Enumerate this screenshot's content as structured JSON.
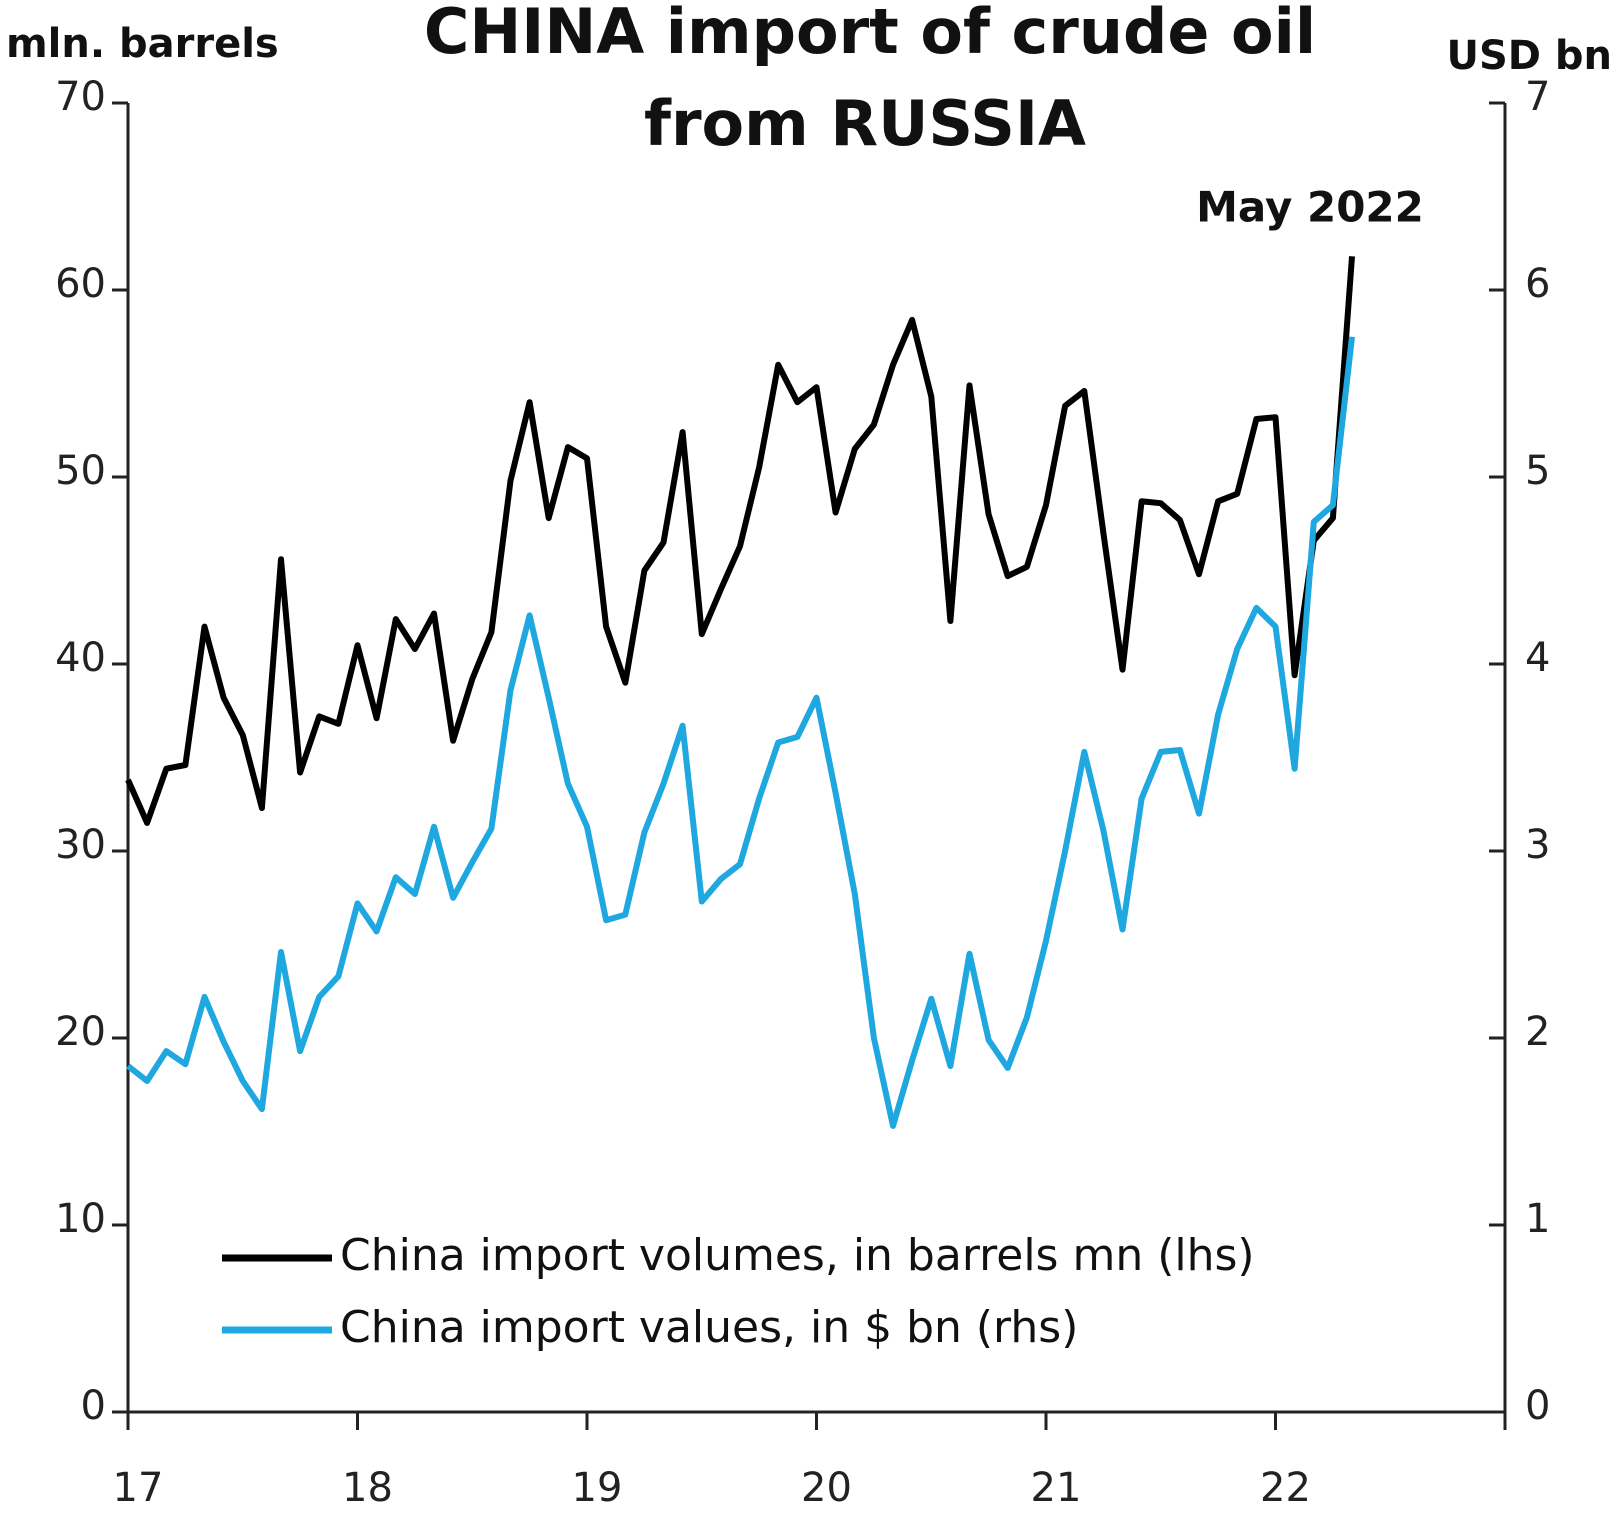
{
  "chart_data": {
    "type": "line",
    "title": [
      "CHINA import of crude oil",
      "from RUSSIA"
    ],
    "ylabel": "mln. barrels",
    "y2label": "USD bn",
    "annotation": "May 2022",
    "xlim": [
      17,
      23
    ],
    "xticks": [
      17,
      18,
      19,
      20,
      21,
      22
    ],
    "ylim": [
      0,
      70
    ],
    "yticks": [
      0,
      10,
      20,
      30,
      40,
      50,
      60,
      70
    ],
    "y2lim": [
      0,
      7
    ],
    "y2ticks": [
      0,
      1,
      2,
      3,
      4,
      5,
      6,
      7
    ],
    "grid": false,
    "legend": "lower left",
    "x": [
      17,
      17.0833,
      17.1667,
      17.25,
      17.3333,
      17.4167,
      17.5,
      17.5833,
      17.6667,
      17.75,
      17.8333,
      17.9167,
      18,
      18.0833,
      18.1667,
      18.25,
      18.3333,
      18.4167,
      18.5,
      18.5833,
      18.6667,
      18.75,
      18.8333,
      18.9167,
      19,
      19.0833,
      19.1667,
      19.25,
      19.3333,
      19.4167,
      19.5,
      19.5833,
      19.6667,
      19.75,
      19.8333,
      19.9167,
      20,
      20.0833,
      20.1667,
      20.25,
      20.3333,
      20.4167,
      20.5,
      20.5833,
      20.6667,
      20.75,
      20.8333,
      20.9167,
      21,
      21.0833,
      21.1667,
      21.25,
      21.3333,
      21.4167,
      21.5,
      21.5833,
      21.6667,
      21.75,
      21.8333,
      21.9167,
      22,
      22.0833,
      22.1667,
      22.25,
      22.3333
    ],
    "series": [
      {
        "name": "China import volumes, in barrels mn (lhs)",
        "color": "#000000",
        "axis": "y",
        "values": [
          33.8,
          31.5,
          34.4,
          34.6,
          42,
          38.2,
          36.2,
          32.3,
          45.6,
          34.2,
          37.2,
          36.8,
          41,
          37.1,
          42.4,
          40.8,
          42.7,
          35.9,
          39.2,
          41.7,
          49.8,
          54,
          47.8,
          51.6,
          51,
          42,
          39,
          45,
          46.5,
          52.4,
          41.6,
          44,
          46.3,
          50.5,
          56,
          54,
          54.8,
          48.1,
          51.5,
          52.8,
          56,
          58.4,
          54.3,
          42.3,
          54.9,
          48,
          44.7,
          45.2,
          48.5,
          53.8,
          54.6,
          47,
          39.7,
          48.7,
          48.6,
          47.7,
          44.8,
          48.7,
          49.1,
          53.1,
          53.2,
          39.4,
          46.6,
          47.8,
          61.8
        ]
      },
      {
        "name": "China import values, in $ bn (rhs)",
        "color": "#1fa7e0",
        "axis": "y2",
        "values": [
          1.85,
          1.77,
          1.93,
          1.86,
          2.22,
          1.98,
          1.77,
          1.62,
          2.46,
          1.93,
          2.22,
          2.33,
          2.72,
          2.57,
          2.86,
          2.77,
          3.13,
          2.75,
          2.94,
          3.12,
          3.86,
          4.26,
          3.82,
          3.36,
          3.13,
          2.63,
          2.66,
          3.1,
          3.36,
          3.67,
          2.73,
          2.85,
          2.93,
          3.28,
          3.58,
          3.61,
          3.82,
          3.31,
          2.77,
          2.0,
          1.53,
          1.88,
          2.21,
          1.85,
          2.45,
          1.99,
          1.84,
          2.11,
          2.52,
          3.0,
          3.53,
          3.11,
          2.58,
          3.28,
          3.53,
          3.54,
          3.2,
          3.73,
          4.08,
          4.3,
          4.2,
          3.44,
          4.76,
          4.85,
          5.75
        ]
      }
    ]
  }
}
